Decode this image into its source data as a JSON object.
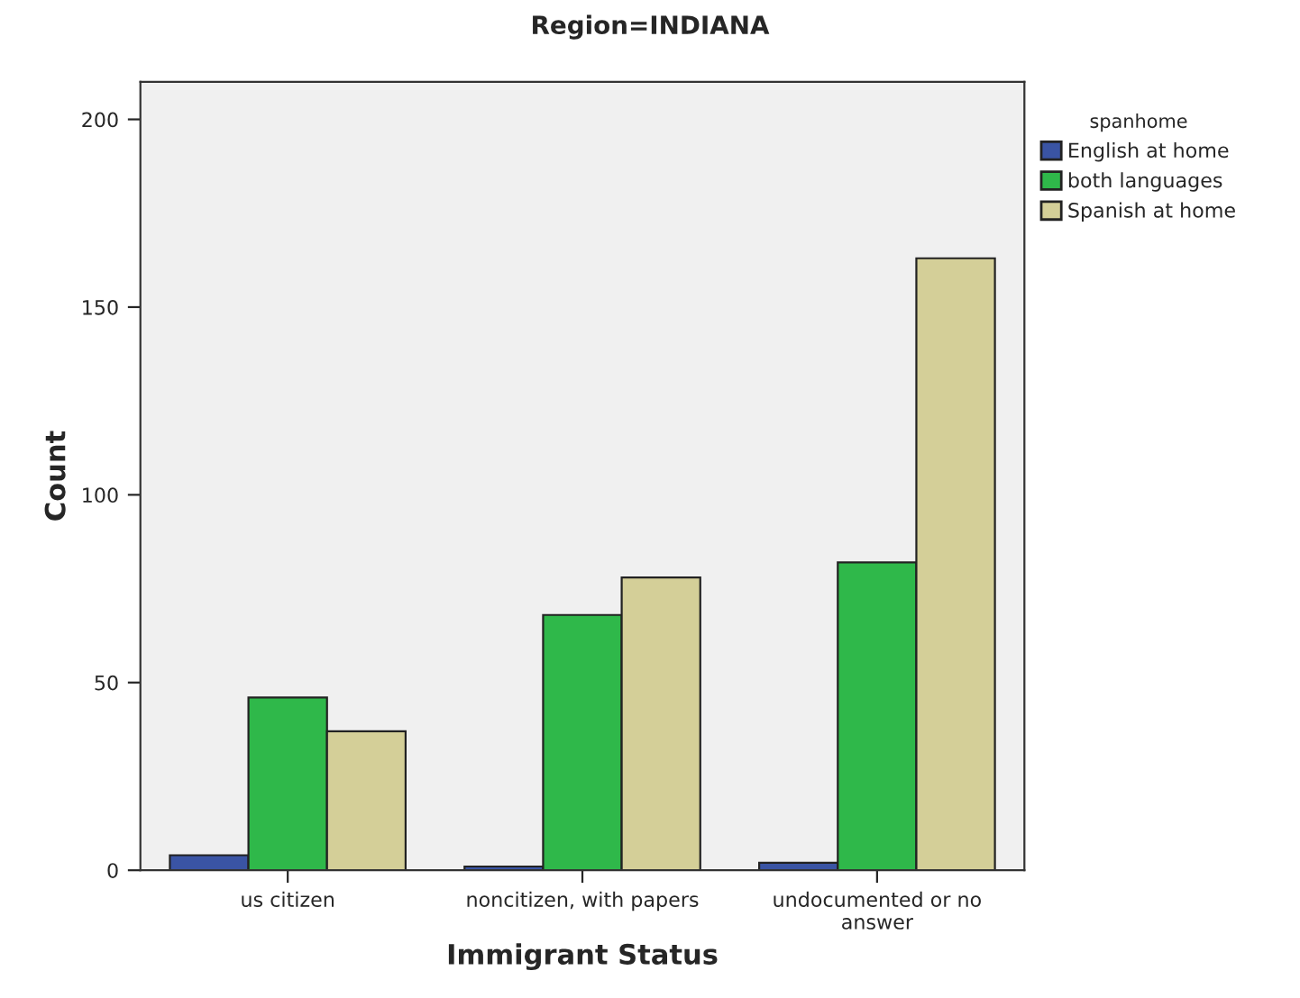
{
  "chart_data": {
    "type": "bar",
    "title": "Region=INDIANA",
    "xlabel": "Immigrant Status",
    "ylabel": "Count",
    "legend_title": "spanhome",
    "categories": [
      "us citizen",
      "noncitizen, with papers",
      "undocumented or no\nanswer"
    ],
    "series": [
      {
        "name": "English at home",
        "color": "#3a54a4",
        "values": [
          4,
          1,
          2
        ]
      },
      {
        "name": "both languages",
        "color": "#2fb84a",
        "values": [
          46,
          68,
          82
        ]
      },
      {
        "name": "Spanish at home",
        "color": "#d4cf98",
        "values": [
          37,
          78,
          163
        ]
      }
    ],
    "ylim": [
      0,
      210
    ],
    "yticks": [
      0,
      50,
      100,
      150,
      200
    ],
    "grid": false,
    "legend": "right"
  }
}
